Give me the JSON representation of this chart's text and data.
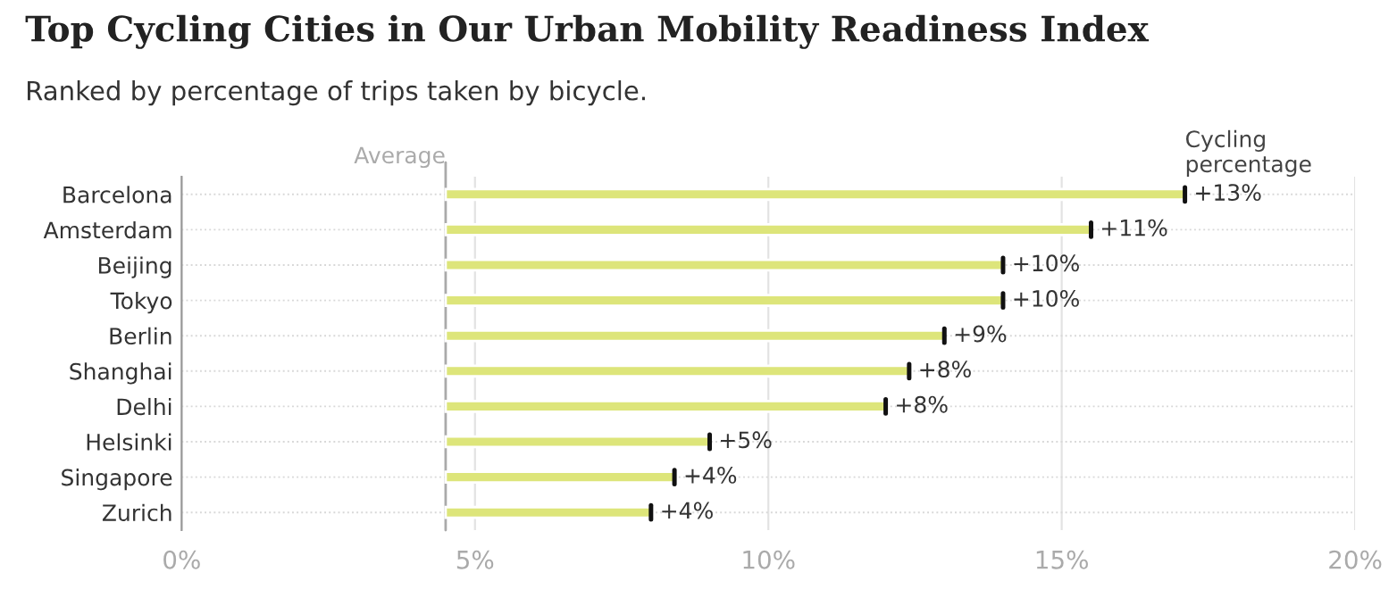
{
  "chart_data": {
    "type": "bar",
    "orientation": "horizontal",
    "title": "Top Cycling Cities in Our Urban Mobility Readiness Index",
    "subtitle": "Ranked by percentage of trips taken by bicycle.",
    "categories": [
      "Barcelona",
      "Amsterdam",
      "Beijing",
      "Tokyo",
      "Berlin",
      "Shanghai",
      "Delhi",
      "Helsinki",
      "Singapore",
      "Zurich"
    ],
    "base": [
      4.5,
      4.5,
      4.5,
      4.5,
      4.5,
      4.5,
      4.5,
      4.5,
      4.5,
      4.5
    ],
    "values": [
      12.6,
      11.0,
      9.5,
      9.5,
      8.5,
      7.9,
      7.5,
      4.5,
      3.9,
      3.5
    ],
    "value_labels": [
      "+13%",
      "+11%",
      "+10%",
      "+10%",
      "+9%",
      "+8%",
      "+8%",
      "+5%",
      "+4%",
      "+4%"
    ],
    "color": "#dde57a",
    "xlim": [
      0,
      20
    ],
    "xticks": [
      {
        "value": 0,
        "label": "0%"
      },
      {
        "value": 5,
        "label": "5%"
      },
      {
        "value": 10,
        "label": "10%"
      },
      {
        "value": 15,
        "label": "15%"
      },
      {
        "value": 20,
        "label": "20%"
      }
    ],
    "ref_lines": [
      {
        "axis": "x",
        "value": 4.5,
        "label": "Average",
        "color": "#aaaaaa"
      }
    ],
    "annotations": [
      "Cycling\npercentage"
    ],
    "grid": true,
    "legend": false
  }
}
